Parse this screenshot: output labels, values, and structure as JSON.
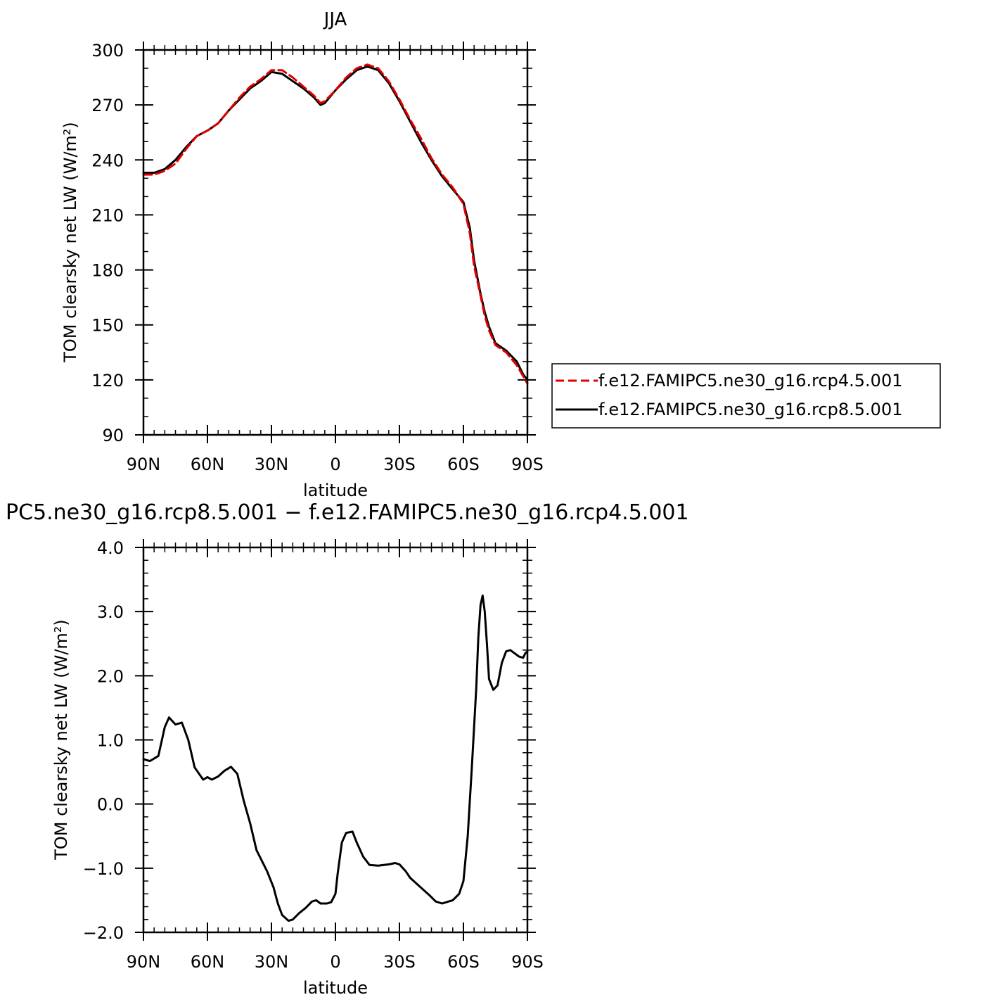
{
  "chart_data": [
    {
      "type": "line",
      "title": "JJA",
      "xlabel": "latitude",
      "ylabel": "TOM clearsky net LW (W/m²)",
      "xlim": [
        90,
        -90
      ],
      "x_tick_values": [
        90,
        60,
        30,
        0,
        -30,
        -60,
        -90
      ],
      "x_tick_labels": [
        "90N",
        "60N",
        "30N",
        "0",
        "30S",
        "60S",
        "90S"
      ],
      "ylim": [
        90,
        300
      ],
      "y_tick_values": [
        90,
        120,
        150,
        180,
        210,
        240,
        270,
        300
      ],
      "y_tick_labels": [
        "90",
        "120",
        "150",
        "180",
        "210",
        "240",
        "270",
        "300"
      ],
      "legend_position": "right",
      "series": [
        {
          "name": "f.e12.FAMIPC5.ne30_g16.rcp4.5.001",
          "color": "#e00000",
          "dash": "dashed",
          "x": [
            90,
            85,
            80,
            75,
            70,
            65,
            60,
            55,
            50,
            45,
            40,
            35,
            30,
            25,
            20,
            15,
            10,
            7,
            5,
            0,
            -5,
            -10,
            -15,
            -20,
            -25,
            -30,
            -35,
            -40,
            -45,
            -50,
            -55,
            -60,
            -63,
            -65,
            -68,
            -70,
            -72,
            -75,
            -80,
            -85,
            -88,
            -90
          ],
          "values": [
            232,
            232,
            234,
            238,
            246,
            253,
            256,
            260,
            267,
            274,
            280,
            284,
            289,
            289,
            285,
            280,
            275,
            271,
            272,
            278,
            285,
            290,
            292,
            290,
            283,
            273,
            262,
            252,
            241,
            232,
            225,
            216,
            200,
            182,
            166,
            155,
            147,
            139,
            135,
            128,
            122,
            118
          ]
        },
        {
          "name": "f.e12.FAMIPC5.ne30_g16.rcp8.5.001",
          "color": "#000000",
          "dash": "solid",
          "x": [
            90,
            85,
            80,
            75,
            70,
            65,
            60,
            55,
            50,
            45,
            40,
            35,
            30,
            25,
            20,
            15,
            10,
            7,
            5,
            0,
            -5,
            -10,
            -15,
            -20,
            -25,
            -30,
            -35,
            -40,
            -45,
            -50,
            -55,
            -60,
            -63,
            -65,
            -68,
            -70,
            -72,
            -75,
            -80,
            -85,
            -88,
            -90
          ],
          "values": [
            233,
            233,
            235,
            240,
            247,
            253,
            256,
            260,
            267,
            273,
            279,
            283,
            288,
            287,
            283,
            279,
            274,
            270,
            271,
            278,
            284,
            289,
            291,
            289,
            282,
            272,
            261,
            250,
            240,
            231,
            224,
            217,
            203,
            185,
            167,
            157,
            149,
            140,
            136,
            130,
            123,
            120
          ]
        }
      ]
    },
    {
      "type": "line",
      "title": "PC5.ne30_g16.rcp8.5.001 − f.e12.FAMIPC5.ne30_g16.rcp4.5.001",
      "xlabel": "latitude",
      "ylabel": "TOM clearsky net LW (W/m²)",
      "xlim": [
        90,
        -90
      ],
      "x_tick_values": [
        90,
        60,
        30,
        0,
        -30,
        -60,
        -90
      ],
      "x_tick_labels": [
        "90N",
        "60N",
        "30N",
        "0",
        "30S",
        "60S",
        "90S"
      ],
      "ylim": [
        -2.0,
        4.0
      ],
      "y_tick_values": [
        -2.0,
        -1.0,
        0.0,
        1.0,
        2.0,
        3.0,
        4.0
      ],
      "y_tick_labels": [
        "−2.0",
        "−1.0",
        "0.0",
        "1.0",
        "2.0",
        "3.0",
        "4.0"
      ],
      "series": [
        {
          "color": "#000000",
          "dash": "solid",
          "x": [
            90,
            87,
            83,
            80,
            78,
            75,
            72,
            69,
            66,
            62,
            60,
            58,
            55,
            52,
            49,
            46,
            43,
            40,
            37,
            35,
            32,
            29,
            27,
            25,
            22,
            20,
            17,
            14,
            11,
            9,
            7,
            4,
            2,
            0,
            -1,
            -3,
            -5,
            -8,
            -10,
            -13,
            -16,
            -20,
            -25,
            -28,
            -30,
            -33,
            -35,
            -40,
            -44,
            -47,
            -50,
            -53,
            -55,
            -58,
            -60,
            -62,
            -64,
            -66,
            -67,
            -68,
            -69,
            -70,
            -71,
            -72,
            -74,
            -76,
            -78,
            -80,
            -82,
            -84,
            -86,
            -88,
            -89,
            -90
          ],
          "values": [
            0.7,
            0.67,
            0.75,
            1.2,
            1.35,
            1.24,
            1.27,
            1.0,
            0.57,
            0.38,
            0.42,
            0.38,
            0.43,
            0.52,
            0.58,
            0.47,
            0.05,
            -0.3,
            -0.72,
            -0.85,
            -1.05,
            -1.3,
            -1.55,
            -1.73,
            -1.82,
            -1.8,
            -1.7,
            -1.62,
            -1.52,
            -1.5,
            -1.55,
            -1.55,
            -1.53,
            -1.4,
            -1.1,
            -0.6,
            -0.45,
            -0.43,
            -0.6,
            -0.82,
            -0.95,
            -0.96,
            -0.94,
            -0.92,
            -0.94,
            -1.05,
            -1.15,
            -1.3,
            -1.42,
            -1.52,
            -1.55,
            -1.52,
            -1.5,
            -1.4,
            -1.2,
            -0.5,
            0.6,
            1.8,
            2.6,
            3.1,
            3.25,
            3.0,
            2.5,
            1.95,
            1.78,
            1.85,
            2.2,
            2.38,
            2.4,
            2.35,
            2.3,
            2.28,
            2.35,
            2.38
          ]
        }
      ]
    }
  ]
}
